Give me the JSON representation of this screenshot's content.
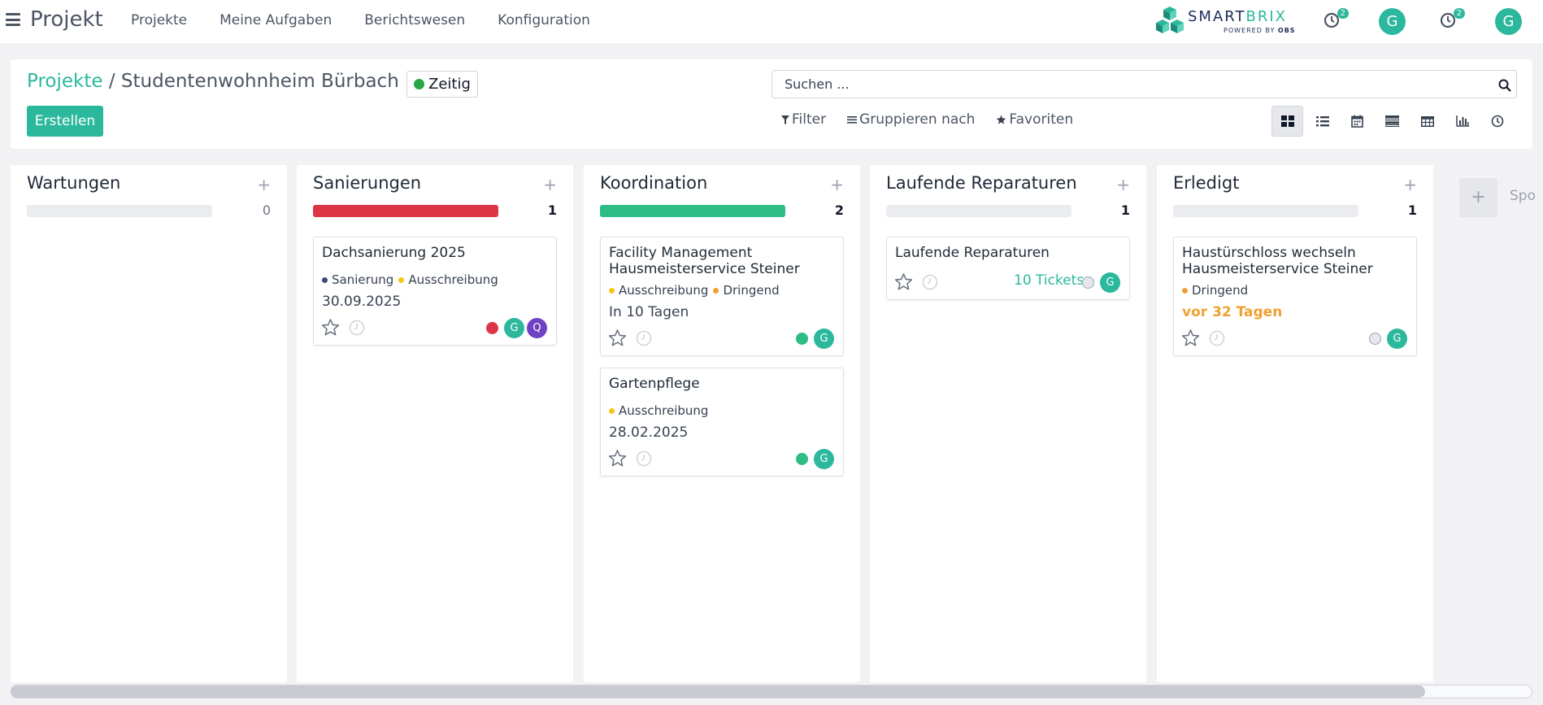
{
  "app": {
    "title": "Projekt",
    "menu": [
      "Projekte",
      "Meine Aufgaben",
      "Berichtswesen",
      "Konfiguration"
    ]
  },
  "logo": {
    "name_a": "SMART",
    "name_b": "BRIX",
    "powered": "POWERED BY",
    "obs": "OBS"
  },
  "topbar": {
    "activity_badge_1": "2",
    "user_initial_1": "G",
    "activity_badge_2": "2",
    "user_initial_2": "G"
  },
  "breadcrumb": {
    "parent": "Projekte",
    "separator": " / ",
    "current": "Studentenwohnheim Bürbach"
  },
  "status": {
    "label": "Zeitig",
    "color": "#28a745"
  },
  "actions": {
    "create": "Erstellen"
  },
  "search": {
    "placeholder": "Suchen ..."
  },
  "filters": {
    "filter": "Filter",
    "group": "Gruppieren nach",
    "favorites": "Favoriten"
  },
  "views": [
    "kanban-icon",
    "list-icon",
    "calendar-icon",
    "gantt-icon",
    "table-icon",
    "graph-icon",
    "activity-icon"
  ],
  "colors": {
    "accent": "#2bb89c",
    "red": "#dc3545",
    "yellow": "#f5c518",
    "orange": "#f0a033",
    "navy": "#3b4a7a",
    "purple": "#6f42c1"
  },
  "columns": [
    {
      "title": "Wartungen",
      "count": "0",
      "progress": 0,
      "progress_color": ""
    },
    {
      "title": "Sanierungen",
      "count": "1",
      "progress": 1,
      "progress_color": "#dc3545"
    },
    {
      "title": "Koordination",
      "count": "2",
      "progress": 1,
      "progress_color": "#2ebd85"
    },
    {
      "title": "Laufende Reparaturen",
      "count": "1",
      "progress": 0,
      "progress_color": ""
    },
    {
      "title": "Erledigt",
      "count": "1",
      "progress": 0,
      "progress_color": ""
    }
  ],
  "cards": {
    "dach": {
      "title": "Dachsanierung 2025",
      "tags": [
        "Sanierung",
        "Ausschreibung"
      ],
      "date": "30.09.2025",
      "avatar1": "G",
      "avatar2": "Q"
    },
    "facility": {
      "title": "Facility Management",
      "subtitle": "Hausmeisterservice Steiner",
      "tags": [
        "Ausschreibung",
        "Dringend"
      ],
      "date": "In 10 Tagen",
      "avatar": "G"
    },
    "garten": {
      "title": "Gartenpflege",
      "tags": [
        "Ausschreibung"
      ],
      "date": "28.02.2025",
      "avatar": "G"
    },
    "laufend": {
      "title": "Laufende Reparaturen",
      "tickets": "10 Tickets",
      "avatar": "G"
    },
    "haus": {
      "title": "Haustürschloss wechseln",
      "subtitle": "Hausmeisterservice Steiner",
      "tags": [
        "Dringend"
      ],
      "date": "vor 32 Tagen",
      "avatar": "G"
    }
  },
  "add_column": {
    "label": "Spo"
  }
}
